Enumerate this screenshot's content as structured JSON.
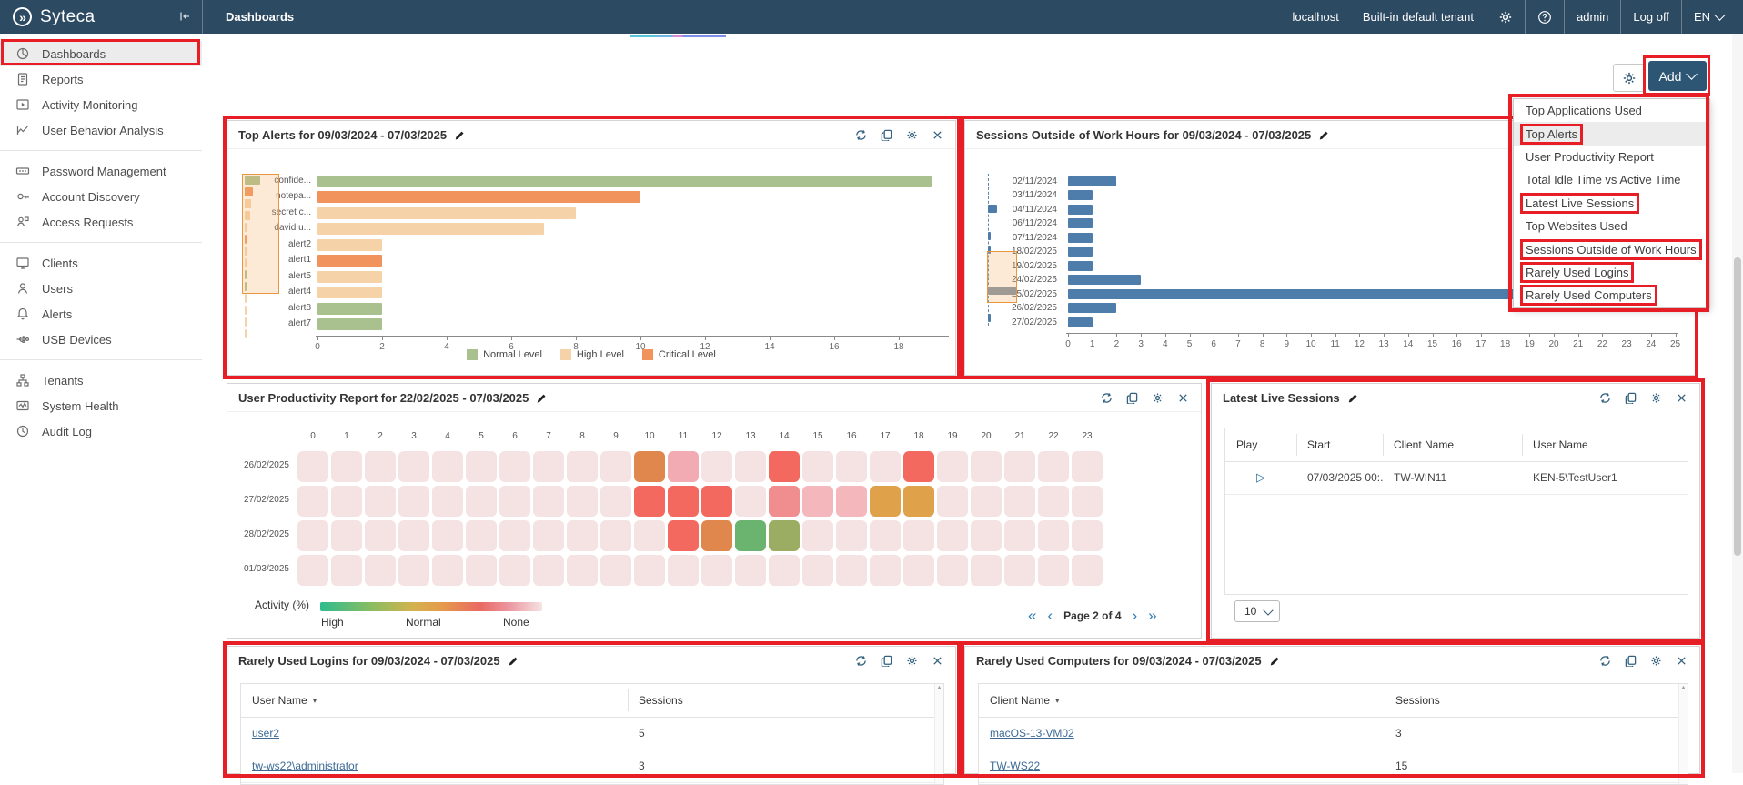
{
  "topbar": {
    "brand": "Syteca",
    "breadcrumb": "Dashboards",
    "host": "localhost",
    "tenant": "Built-in default tenant",
    "user": "admin",
    "logoff_label": "Log off",
    "lang": "EN"
  },
  "sidebar": {
    "groups": [
      {
        "items": [
          {
            "label": "Dashboards",
            "icon": "dashboard",
            "active": true
          },
          {
            "label": "Reports",
            "icon": "reports"
          },
          {
            "label": "Activity Monitoring",
            "icon": "activity-monitoring"
          },
          {
            "label": "User Behavior Analysis",
            "icon": "user-behavior-analysis"
          }
        ]
      },
      {
        "items": [
          {
            "label": "Password Management",
            "icon": "password-management"
          },
          {
            "label": "Account Discovery",
            "icon": "account-discovery"
          },
          {
            "label": "Access Requests",
            "icon": "access-requests"
          }
        ]
      },
      {
        "items": [
          {
            "label": "Clients",
            "icon": "clients"
          },
          {
            "label": "Users",
            "icon": "users"
          },
          {
            "label": "Alerts",
            "icon": "alerts"
          },
          {
            "label": "USB Devices",
            "icon": "usb-devices"
          }
        ]
      },
      {
        "items": [
          {
            "label": "Tenants",
            "icon": "tenants"
          },
          {
            "label": "System Health",
            "icon": "system-health"
          },
          {
            "label": "Audit Log",
            "icon": "audit-log"
          }
        ]
      }
    ]
  },
  "toolbar": {
    "add_label": "Add"
  },
  "add_menu": {
    "items": [
      {
        "label": "Top Applications Used"
      },
      {
        "label": "Top Alerts",
        "highlighted": true,
        "annotated": true
      },
      {
        "label": "User Productivity Report"
      },
      {
        "label": "Total Idle Time vs Active Time"
      },
      {
        "label": "Latest Live Sessions",
        "annotated": true
      },
      {
        "label": "Top Websites Used"
      },
      {
        "label": "Sessions Outside of Work Hours",
        "annotated": true
      },
      {
        "label": "Rarely Used Logins",
        "annotated": true
      },
      {
        "label": "Rarely Used Computers",
        "annotated": true
      }
    ]
  },
  "chart_data": [
    {
      "id": "top_alerts",
      "type": "bar",
      "orientation": "horizontal",
      "title": "Top Alerts for 09/03/2024 - 07/03/2025",
      "categories": [
        "confide...",
        "notepa...",
        "secret c...",
        "david u...",
        "alert2",
        "alert1",
        "alert5",
        "alert4",
        "alert8",
        "alert7"
      ],
      "values": [
        19,
        10,
        8,
        7,
        2,
        2,
        2,
        2,
        2,
        2
      ],
      "levels": [
        "normal",
        "critical",
        "high",
        "high",
        "high",
        "critical",
        "high",
        "high",
        "normal",
        "normal"
      ],
      "level_colors": {
        "normal": "#a9c08f",
        "high": "#f6d2a9",
        "critical": "#f0935c"
      },
      "xlim": [
        0,
        19.5
      ],
      "tick_step": 2,
      "tick_max": 18,
      "legend": [
        {
          "label": "Normal Level",
          "level": "normal"
        },
        {
          "label": "High Level",
          "level": "high"
        },
        {
          "label": "Critical Level",
          "level": "critical"
        }
      ],
      "mini_overflow": [
        1,
        1,
        1,
        1
      ]
    },
    {
      "id": "sessions_outside",
      "type": "bar",
      "orientation": "horizontal",
      "title": "Sessions Outside of Work Hours for 09/03/2024 - 07/03/2025",
      "categories": [
        "02/11/2024",
        "03/11/2024",
        "04/11/2024",
        "06/11/2024",
        "07/11/2024",
        "18/02/2025",
        "19/02/2025",
        "24/02/2025",
        "25/02/2025",
        "26/02/2025",
        "27/02/2025"
      ],
      "values": [
        2,
        1,
        1,
        1,
        1,
        1,
        1,
        3,
        24,
        2,
        1
      ],
      "bar_color": "#4e7dab",
      "xlim": [
        0,
        25
      ],
      "tick_step": 1,
      "tick_max": 25,
      "mini_bars": [
        {
          "row": 2,
          "w": 10,
          "color": "#4e7dab"
        },
        {
          "row": 4,
          "w": 3,
          "color": "#4e7dab"
        },
        {
          "row": 5,
          "w": 3,
          "color": "#4e7dab"
        },
        {
          "row": 8,
          "w": 32,
          "color": "#7e90a2"
        },
        {
          "row": 10,
          "w": 3,
          "color": "#4e7dab"
        }
      ]
    },
    {
      "id": "productivity",
      "type": "heatmap",
      "title": "User Productivity Report for 22/02/2025 - 07/03/2025",
      "cols": 24,
      "rows": [
        "26/02/2025",
        "27/02/2025",
        "28/02/2025",
        "01/03/2025"
      ],
      "base_color": "#f5e3e3",
      "cells": [
        {
          "r": 0,
          "c": 10,
          "color": "#e0874e"
        },
        {
          "r": 0,
          "c": 11,
          "color": "#f2abb2"
        },
        {
          "r": 0,
          "c": 14,
          "color": "#f4695f"
        },
        {
          "r": 0,
          "c": 18,
          "color": "#f4695f"
        },
        {
          "r": 1,
          "c": 10,
          "color": "#f4695f"
        },
        {
          "r": 1,
          "c": 11,
          "color": "#f4695f"
        },
        {
          "r": 1,
          "c": 12,
          "color": "#f4695f"
        },
        {
          "r": 1,
          "c": 14,
          "color": "#f08d8f"
        },
        {
          "r": 1,
          "c": 15,
          "color": "#f3b7bc"
        },
        {
          "r": 1,
          "c": 16,
          "color": "#f3b7bc"
        },
        {
          "r": 1,
          "c": 17,
          "color": "#dfa24b"
        },
        {
          "r": 1,
          "c": 18,
          "color": "#dfa24b"
        },
        {
          "r": 2,
          "c": 11,
          "color": "#f4695f"
        },
        {
          "r": 2,
          "c": 12,
          "color": "#e0874e"
        },
        {
          "r": 2,
          "c": 13,
          "color": "#6ab46f"
        },
        {
          "r": 2,
          "c": 14,
          "color": "#9aad63"
        }
      ],
      "legend": {
        "label": "Activity (%)",
        "high": "High",
        "normal": "Normal",
        "none": "None"
      },
      "pagination": {
        "first": "«",
        "prev": "‹",
        "label": "Page 2 of 4",
        "next": "›",
        "last": "»"
      }
    }
  ],
  "widgets": {
    "live_sessions": {
      "title": "Latest Live Sessions",
      "columns": [
        "Play",
        "Start",
        "Client Name",
        "User Name"
      ],
      "rows": [
        {
          "start": "07/03/2025 00:...",
          "client": "TW-WIN11",
          "user": "KEN-5\\TestUser1"
        }
      ],
      "page_size": "10"
    },
    "rare_logins": {
      "title": "Rarely Used Logins for 09/03/2024 - 07/03/2025",
      "columns": [
        "User Name",
        "Sessions"
      ],
      "rows": [
        {
          "name": "user2",
          "sessions": "5"
        },
        {
          "name": "tw-ws22\\administrator",
          "sessions": "3"
        }
      ]
    },
    "rare_computers": {
      "title": "Rarely Used Computers for 09/03/2024 - 07/03/2025",
      "columns": [
        "Client Name",
        "Sessions"
      ],
      "rows": [
        {
          "name": "macOS-13-VM02",
          "sessions": "3"
        },
        {
          "name": "TW-WS22",
          "sessions": "15"
        }
      ]
    }
  }
}
